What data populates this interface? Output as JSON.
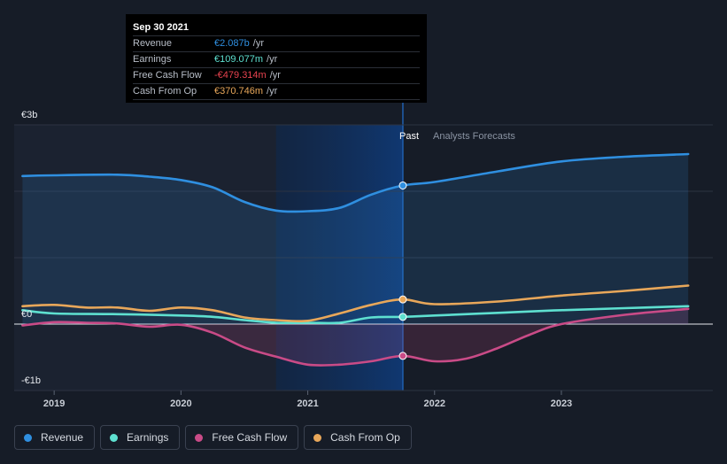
{
  "tooltip": {
    "date": "Sep 30 2021",
    "rows": [
      {
        "label": "Revenue",
        "value": "€2.087b",
        "unit": "/yr",
        "color": "#2f8fe0"
      },
      {
        "label": "Earnings",
        "value": "€109.077m",
        "unit": "/yr",
        "color": "#5ee0d0"
      },
      {
        "label": "Free Cash Flow",
        "value": "-€479.314m",
        "unit": "/yr",
        "color": "#e8434f"
      },
      {
        "label": "Cash From Op",
        "value": "€370.746m",
        "unit": "/yr",
        "color": "#e8a75a"
      }
    ]
  },
  "labels": {
    "past": "Past",
    "forecast": "Analysts Forecasts"
  },
  "legend": [
    {
      "label": "Revenue",
      "color": "#2f8fe0"
    },
    {
      "label": "Earnings",
      "color": "#5ee0d0"
    },
    {
      "label": "Free Cash Flow",
      "color": "#c94b87"
    },
    {
      "label": "Cash From Op",
      "color": "#e8a75a"
    }
  ],
  "chart_data": {
    "type": "line",
    "xlim": [
      2018.7,
      2024.0
    ],
    "ylim": [
      -1,
      3
    ],
    "y_ticks": [
      {
        "value": 3,
        "label": "€3b"
      },
      {
        "value": 0,
        "label": "€0"
      },
      {
        "value": -1,
        "label": "-€1b"
      }
    ],
    "x_ticks": [
      {
        "value": 2019,
        "label": "2019"
      },
      {
        "value": 2020,
        "label": "2020"
      },
      {
        "value": 2021,
        "label": "2021"
      },
      {
        "value": 2022,
        "label": "2022"
      },
      {
        "value": 2023,
        "label": "2023"
      }
    ],
    "past_end": 2021.75,
    "highlight_start": 2020.75,
    "grid": true,
    "legend_position": "bottom-left",
    "series": [
      {
        "name": "Revenue",
        "color": "#2f8fe0",
        "fill": true,
        "points": [
          [
            2018.75,
            2.23
          ],
          [
            2019.0,
            2.24
          ],
          [
            2019.5,
            2.25
          ],
          [
            2019.75,
            2.22
          ],
          [
            2020.0,
            2.17
          ],
          [
            2020.25,
            2.06
          ],
          [
            2020.5,
            1.84
          ],
          [
            2020.75,
            1.71
          ],
          [
            2021.0,
            1.7
          ],
          [
            2021.25,
            1.75
          ],
          [
            2021.5,
            1.95
          ],
          [
            2021.75,
            2.087
          ],
          [
            2022.0,
            2.14
          ],
          [
            2022.5,
            2.3
          ],
          [
            2023.0,
            2.45
          ],
          [
            2023.5,
            2.52
          ],
          [
            2024.0,
            2.56
          ]
        ],
        "marker": [
          2021.75,
          2.087
        ]
      },
      {
        "name": "Earnings",
        "color": "#5ee0d0",
        "fill": false,
        "points": [
          [
            2018.75,
            0.21
          ],
          [
            2019.0,
            0.16
          ],
          [
            2019.5,
            0.15
          ],
          [
            2020.0,
            0.13
          ],
          [
            2020.25,
            0.11
          ],
          [
            2020.5,
            0.06
          ],
          [
            2020.75,
            0.02
          ],
          [
            2021.0,
            0.02
          ],
          [
            2021.25,
            0.02
          ],
          [
            2021.5,
            0.1
          ],
          [
            2021.75,
            0.109
          ],
          [
            2022.0,
            0.13
          ],
          [
            2022.5,
            0.17
          ],
          [
            2023.0,
            0.21
          ],
          [
            2023.5,
            0.24
          ],
          [
            2024.0,
            0.27
          ]
        ],
        "marker": [
          2021.75,
          0.109
        ]
      },
      {
        "name": "Free Cash Flow",
        "color": "#c94b87",
        "fill": true,
        "points": [
          [
            2018.75,
            -0.02
          ],
          [
            2019.0,
            0.03
          ],
          [
            2019.25,
            0.02
          ],
          [
            2019.5,
            0.01
          ],
          [
            2019.75,
            -0.04
          ],
          [
            2020.0,
            -0.01
          ],
          [
            2020.25,
            -0.13
          ],
          [
            2020.5,
            -0.35
          ],
          [
            2020.75,
            -0.49
          ],
          [
            2021.0,
            -0.61
          ],
          [
            2021.25,
            -0.61
          ],
          [
            2021.5,
            -0.56
          ],
          [
            2021.75,
            -0.479
          ],
          [
            2022.0,
            -0.56
          ],
          [
            2022.25,
            -0.52
          ],
          [
            2022.5,
            -0.36
          ],
          [
            2022.75,
            -0.16
          ],
          [
            2023.0,
            0.0
          ],
          [
            2023.5,
            0.14
          ],
          [
            2024.0,
            0.23
          ]
        ],
        "marker": [
          2021.75,
          -0.479
        ]
      },
      {
        "name": "Cash From Op",
        "color": "#e8a75a",
        "fill": false,
        "points": [
          [
            2018.75,
            0.27
          ],
          [
            2019.0,
            0.29
          ],
          [
            2019.25,
            0.25
          ],
          [
            2019.5,
            0.25
          ],
          [
            2019.75,
            0.2
          ],
          [
            2020.0,
            0.25
          ],
          [
            2020.25,
            0.21
          ],
          [
            2020.5,
            0.1
          ],
          [
            2020.75,
            0.06
          ],
          [
            2021.0,
            0.05
          ],
          [
            2021.25,
            0.16
          ],
          [
            2021.5,
            0.29
          ],
          [
            2021.75,
            0.371
          ],
          [
            2022.0,
            0.3
          ],
          [
            2022.5,
            0.34
          ],
          [
            2023.0,
            0.43
          ],
          [
            2023.5,
            0.5
          ],
          [
            2024.0,
            0.58
          ]
        ],
        "marker": [
          2021.75,
          0.371
        ]
      }
    ]
  }
}
